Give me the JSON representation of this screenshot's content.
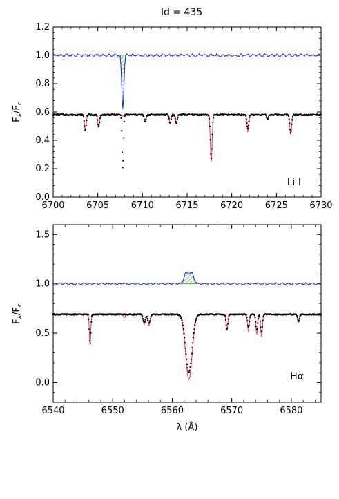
{
  "figure": {
    "title": "Id = 435",
    "xlabel": "λ (Å)",
    "ylabel_main": "F",
    "ylabel_sub1": "λ",
    "ylabel_sep": "/F",
    "ylabel_sub2": "c"
  },
  "chart_data": [
    {
      "type": "line",
      "panel_label": "Li I",
      "xlim": [
        6700,
        6730
      ],
      "ylim": [
        0.0,
        1.2
      ],
      "xticks": [
        6700,
        6705,
        6710,
        6715,
        6720,
        6725,
        6730
      ],
      "yticks": [
        0.0,
        0.2,
        0.4,
        0.6,
        0.8,
        1.0,
        1.2
      ],
      "xtick_labels": [
        "6700",
        "6705",
        "6710",
        "6715",
        "6720",
        "6725",
        "6730"
      ],
      "ytick_labels": [
        "0.0",
        "0.2",
        "0.4",
        "0.6",
        "0.8",
        "1.0",
        "1.2"
      ],
      "residual_continuum": 1.0,
      "spectrum_continuum": 0.58,
      "residual_feature": {
        "center": 6707.8,
        "depth": 0.37,
        "sigma": 0.12,
        "direction": "absorption",
        "hatch_color": "#33aa33"
      },
      "observed_lines": [
        {
          "center": 6703.6,
          "depth": 0.11,
          "sigma": 0.1
        },
        {
          "center": 6705.1,
          "depth": 0.09,
          "sigma": 0.1
        },
        {
          "center": 6707.8,
          "depth": 0.38,
          "sigma": 0.08
        },
        {
          "center": 6710.3,
          "depth": 0.05,
          "sigma": 0.1
        },
        {
          "center": 6713.1,
          "depth": 0.06,
          "sigma": 0.1
        },
        {
          "center": 6713.8,
          "depth": 0.06,
          "sigma": 0.1
        },
        {
          "center": 6717.7,
          "depth": 0.31,
          "sigma": 0.1
        },
        {
          "center": 6721.8,
          "depth": 0.1,
          "sigma": 0.1
        },
        {
          "center": 6724.0,
          "depth": 0.03,
          "sigma": 0.1
        },
        {
          "center": 6726.6,
          "depth": 0.13,
          "sigma": 0.1
        }
      ],
      "model_lines": [
        {
          "center": 6703.6,
          "depth": 0.11,
          "sigma": 0.1
        },
        {
          "center": 6705.1,
          "depth": 0.09,
          "sigma": 0.1
        },
        {
          "center": 6707.8,
          "depth": 0.01,
          "sigma": 0.1
        },
        {
          "center": 6710.3,
          "depth": 0.05,
          "sigma": 0.1
        },
        {
          "center": 6713.1,
          "depth": 0.06,
          "sigma": 0.1
        },
        {
          "center": 6713.8,
          "depth": 0.06,
          "sigma": 0.1
        },
        {
          "center": 6717.7,
          "depth": 0.33,
          "sigma": 0.1
        },
        {
          "center": 6721.8,
          "depth": 0.12,
          "sigma": 0.1
        },
        {
          "center": 6724.0,
          "depth": 0.03,
          "sigma": 0.1
        },
        {
          "center": 6726.6,
          "depth": 0.14,
          "sigma": 0.1
        }
      ],
      "series": [
        {
          "role": "observed",
          "color": "#000000",
          "style": "dots"
        },
        {
          "role": "model",
          "color": "#ff3366",
          "style": "line"
        },
        {
          "role": "residual",
          "color": "#2222ee",
          "style": "line"
        }
      ]
    },
    {
      "type": "line",
      "panel_label": "Hα",
      "xlim": [
        6540,
        6585
      ],
      "ylim": [
        -0.2,
        1.6
      ],
      "xticks": [
        6540,
        6550,
        6560,
        6570,
        6580
      ],
      "yticks": [
        0.0,
        0.5,
        1.0,
        1.5
      ],
      "xtick_labels": [
        "6540",
        "6550",
        "6560",
        "6570",
        "6580"
      ],
      "ytick_labels": [
        "0.0",
        "0.5",
        "1.0",
        "1.5"
      ],
      "residual_continuum": 1.0,
      "spectrum_continuum": 0.69,
      "residual_feature": {
        "center": 6562.8,
        "depth": -0.11,
        "sigma": 0.6,
        "direction": "emission",
        "hatch_color": "#33aa33"
      },
      "observed_lines": [
        {
          "center": 6546.2,
          "depth": 0.3,
          "sigma": 0.12
        },
        {
          "center": 6555.3,
          "depth": 0.08,
          "sigma": 0.2
        },
        {
          "center": 6556.1,
          "depth": 0.09,
          "sigma": 0.2
        },
        {
          "center": 6562.8,
          "depth": 0.58,
          "sigma": 0.55
        },
        {
          "center": 6569.2,
          "depth": 0.15,
          "sigma": 0.15
        },
        {
          "center": 6572.8,
          "depth": 0.13,
          "sigma": 0.15
        },
        {
          "center": 6574.2,
          "depth": 0.16,
          "sigma": 0.15
        },
        {
          "center": 6575.0,
          "depth": 0.18,
          "sigma": 0.15
        },
        {
          "center": 6581.2,
          "depth": 0.07,
          "sigma": 0.15
        }
      ],
      "model_lines": [
        {
          "center": 6546.2,
          "depth": 0.31,
          "sigma": 0.12
        },
        {
          "center": 6552.0,
          "depth": 0.03,
          "sigma": 0.15
        },
        {
          "center": 6555.3,
          "depth": 0.1,
          "sigma": 0.2
        },
        {
          "center": 6556.1,
          "depth": 0.11,
          "sigma": 0.2
        },
        {
          "center": 6562.8,
          "depth": 0.66,
          "sigma": 0.55
        },
        {
          "center": 6569.2,
          "depth": 0.16,
          "sigma": 0.15
        },
        {
          "center": 6572.8,
          "depth": 0.17,
          "sigma": 0.15
        },
        {
          "center": 6574.2,
          "depth": 0.2,
          "sigma": 0.15
        },
        {
          "center": 6575.0,
          "depth": 0.22,
          "sigma": 0.15
        },
        {
          "center": 6581.2,
          "depth": 0.08,
          "sigma": 0.15
        }
      ],
      "series": [
        {
          "role": "observed",
          "color": "#000000",
          "style": "dots"
        },
        {
          "role": "model",
          "color": "#ff3366",
          "style": "line"
        },
        {
          "role": "residual",
          "color": "#2222ee",
          "style": "line"
        }
      ]
    }
  ]
}
